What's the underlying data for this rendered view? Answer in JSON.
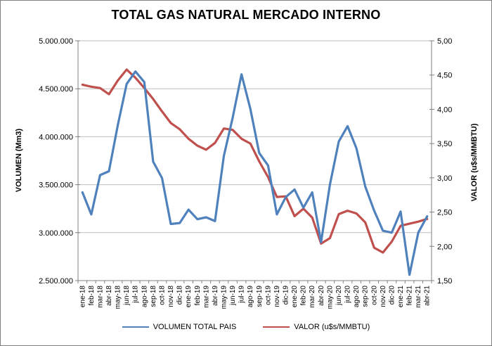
{
  "chart_data": {
    "type": "line",
    "title": "TOTAL GAS NATURAL MERCADO INTERNO",
    "ylabel_left": "VOLUMEN (Mm3)",
    "ylabel_right": "VALOR (u$s/MMBTU)",
    "grid": true,
    "legend_position": "bottom",
    "x_tick_rotation": -90,
    "categories": [
      "ene-18",
      "feb-18",
      "mar-18",
      "abr-18",
      "may-18",
      "jun-18",
      "jul-18",
      "ago-18",
      "sep-18",
      "oct-18",
      "nov-18",
      "dic-18",
      "ene-19",
      "feb-19",
      "mar-19",
      "abr-19",
      "may-19",
      "jun-19",
      "jul-19",
      "ago-19",
      "sep-19",
      "oct-19",
      "nov-19",
      "dic-19",
      "ene-20",
      "feb-20",
      "mar-20",
      "abr-20",
      "may-20",
      "jun-20",
      "jul-20",
      "ago-20",
      "sep-20",
      "oct-20",
      "nov-20",
      "dic-20",
      "ene-21",
      "feb-21",
      "mar-21",
      "abr-21"
    ],
    "series": [
      {
        "name": "VOLUMEN TOTAL PAIS",
        "axis": "left",
        "color": "#4F81BD",
        "values": [
          3420000,
          3190000,
          3600000,
          3640000,
          4120000,
          4550000,
          4680000,
          4570000,
          3740000,
          3570000,
          3090000,
          3100000,
          3240000,
          3140000,
          3160000,
          3120000,
          3800000,
          4200000,
          4650000,
          4290000,
          3830000,
          3700000,
          3190000,
          3370000,
          3450000,
          3260000,
          3420000,
          2900000,
          3500000,
          3950000,
          4110000,
          3880000,
          3480000,
          3230000,
          3020000,
          3000000,
          3220000,
          2560000,
          3000000,
          3170000
        ]
      },
      {
        "name": "VALOR (u$s/MMBTU)",
        "axis": "right",
        "color": "#C0504D",
        "values": [
          4.36,
          4.33,
          4.31,
          4.22,
          4.42,
          4.58,
          4.46,
          4.31,
          4.15,
          3.97,
          3.8,
          3.71,
          3.57,
          3.47,
          3.41,
          3.51,
          3.72,
          3.7,
          3.57,
          3.5,
          3.24,
          3.01,
          2.72,
          2.73,
          2.44,
          2.55,
          2.42,
          2.04,
          2.12,
          2.47,
          2.52,
          2.48,
          2.35,
          1.98,
          1.91,
          2.07,
          2.3,
          2.33,
          2.36,
          2.4
        ]
      }
    ],
    "y_left": {
      "min": 2500000,
      "max": 5000000,
      "step": 500000,
      "tick_labels": [
        "2.500.000",
        "3.000.000",
        "3.500.000",
        "4.000.000",
        "4.500.000",
        "5.000.000"
      ]
    },
    "y_right": {
      "min": 1.5,
      "max": 5.0,
      "step": 0.5,
      "tick_labels": [
        "1,50",
        "2,00",
        "2,50",
        "3,00",
        "3,50",
        "4,00",
        "4,50",
        "5,00"
      ]
    }
  },
  "colors": {
    "gridline": "#BFBFBF",
    "axis": "#808080",
    "text": "#000000"
  }
}
